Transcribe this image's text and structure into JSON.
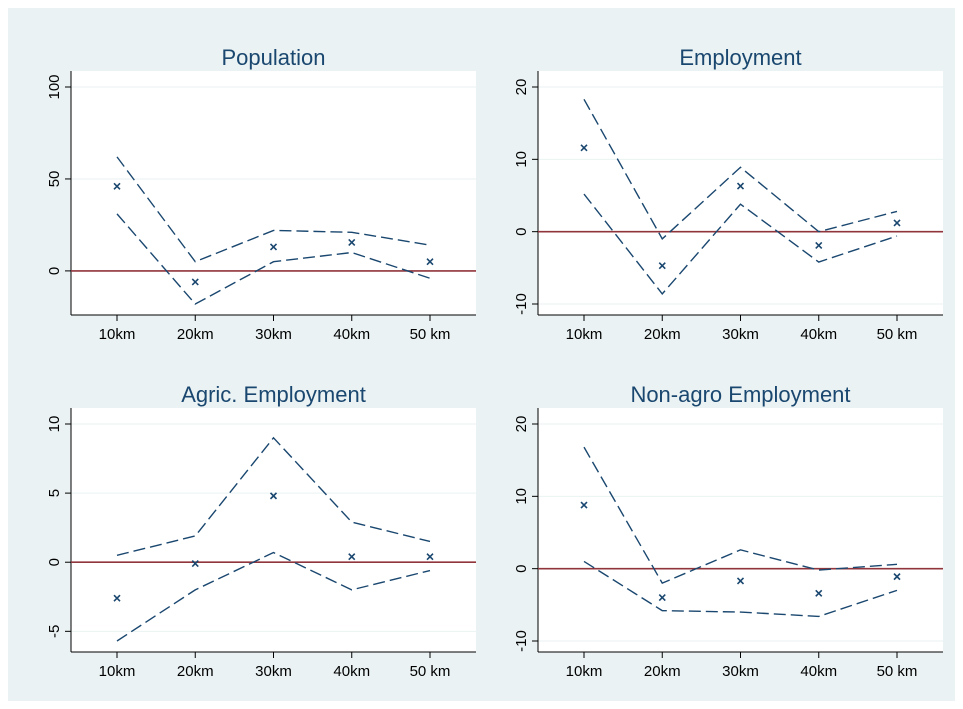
{
  "colors": {
    "background": "#eaf2f3",
    "plot_area": "#ffffff",
    "series": "#1a476f",
    "zero_line": "#90353b"
  },
  "chart_data": [
    {
      "type": "line",
      "title": "Population",
      "categories": [
        "10km",
        "20km",
        "30km",
        "40km",
        "50 km"
      ],
      "ylim": [
        -18,
        100
      ],
      "yticks": [
        0,
        50,
        100
      ],
      "series": [
        {
          "role": "upper-ci",
          "values": [
            62,
            5,
            22,
            21,
            14
          ]
        },
        {
          "role": "lower-ci",
          "values": [
            31,
            -18,
            5,
            10,
            -4
          ]
        },
        {
          "role": "point-estimate",
          "values": [
            46,
            -6,
            13,
            15.5,
            5
          ]
        }
      ],
      "reference_line": 0,
      "grid": true
    },
    {
      "type": "line",
      "title": "Employment",
      "categories": [
        "10km",
        "20km",
        "30km",
        "40km",
        "50 km"
      ],
      "ylim": [
        -10,
        20
      ],
      "yticks": [
        -10,
        0,
        10,
        20
      ],
      "series": [
        {
          "role": "upper-ci",
          "values": [
            18.3,
            -1,
            8.9,
            0,
            2.8
          ]
        },
        {
          "role": "lower-ci",
          "values": [
            5.2,
            -8.6,
            3.8,
            -4.2,
            -0.6
          ]
        },
        {
          "role": "point-estimate",
          "values": [
            11.6,
            -4.7,
            6.3,
            -1.9,
            1.2
          ]
        }
      ],
      "reference_line": 0,
      "grid": true
    },
    {
      "type": "line",
      "title": "Agric. Employment",
      "categories": [
        "10km",
        "20km",
        "30km",
        "40km",
        "50 km"
      ],
      "ylim": [
        -5.7,
        10
      ],
      "yticks": [
        -5,
        0,
        5,
        10
      ],
      "series": [
        {
          "role": "upper-ci",
          "values": [
            0.5,
            1.9,
            9,
            2.9,
            1.5
          ]
        },
        {
          "role": "lower-ci",
          "values": [
            -5.7,
            -2,
            0.7,
            -2,
            -0.6
          ]
        },
        {
          "role": "point-estimate",
          "values": [
            -2.6,
            -0.1,
            4.8,
            0.4,
            0.4
          ]
        }
      ],
      "reference_line": 0,
      "grid": true
    },
    {
      "type": "line",
      "title": "Non-agro Employment",
      "categories": [
        "10km",
        "20km",
        "30km",
        "40km",
        "50 km"
      ],
      "ylim": [
        -10,
        20
      ],
      "yticks": [
        -10,
        0,
        10,
        20
      ],
      "series": [
        {
          "role": "upper-ci",
          "values": [
            16.8,
            -2,
            2.6,
            -0.2,
            0.6
          ]
        },
        {
          "role": "lower-ci",
          "values": [
            1,
            -5.8,
            -6,
            -6.6,
            -3
          ]
        },
        {
          "role": "point-estimate",
          "values": [
            8.8,
            -4,
            -1.7,
            -3.4,
            -1.1
          ]
        }
      ],
      "reference_line": 0,
      "grid": true
    }
  ]
}
